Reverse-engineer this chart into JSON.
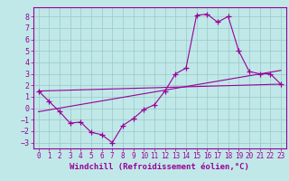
{
  "bg_color": "#c0e8e8",
  "grid_color": "#98c8c8",
  "line_color": "#990099",
  "marker": "+",
  "xlabel": "Windchill (Refroidissement éolien,°C)",
  "xlabel_fontsize": 6.5,
  "tick_fontsize": 6,
  "xlim": [
    -0.5,
    23.5
  ],
  "ylim": [
    -3.5,
    8.8
  ],
  "yticks": [
    -3,
    -2,
    -1,
    0,
    1,
    2,
    3,
    4,
    5,
    6,
    7,
    8
  ],
  "xticks": [
    0,
    1,
    2,
    3,
    4,
    5,
    6,
    7,
    8,
    9,
    10,
    11,
    12,
    13,
    14,
    15,
    16,
    17,
    18,
    19,
    20,
    21,
    22,
    23
  ],
  "series1_x": [
    0,
    1,
    2,
    3,
    4,
    5,
    6,
    7,
    8,
    9,
    10,
    11,
    12,
    13,
    14,
    15,
    16,
    17,
    18,
    19,
    20,
    21,
    22,
    23
  ],
  "series1_y": [
    1.5,
    0.6,
    -0.3,
    -1.3,
    -1.2,
    -2.1,
    -2.3,
    -3.0,
    -1.5,
    -0.9,
    -0.1,
    0.3,
    1.5,
    3.0,
    3.5,
    8.1,
    8.2,
    7.5,
    8.0,
    5.0,
    3.2,
    3.0,
    3.0,
    2.1
  ],
  "series2_x": [
    0,
    23
  ],
  "series2_y": [
    1.5,
    2.1
  ],
  "series3_x": [
    0,
    23
  ],
  "series3_y": [
    -0.3,
    3.3
  ]
}
